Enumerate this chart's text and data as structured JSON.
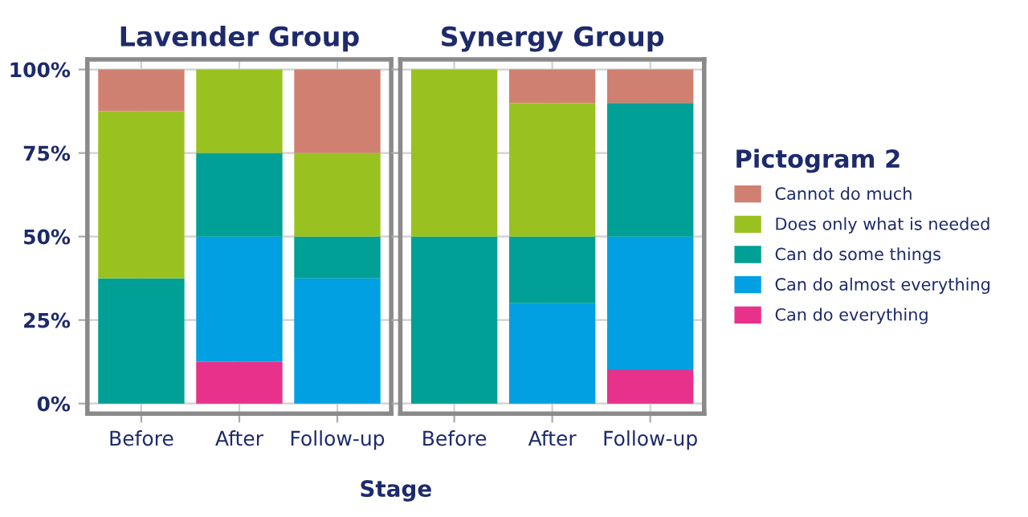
{
  "chart_data": [
    {
      "type": "bar",
      "title": "Lavender Group",
      "xlabel": "Stage",
      "categories": [
        "Before",
        "After",
        "Follow-up"
      ],
      "stacked": true,
      "ylim": [
        0,
        100
      ],
      "yticks": [
        {
          "value": 0,
          "label": "0%"
        },
        {
          "value": 25,
          "label": "25%"
        },
        {
          "value": 50,
          "label": "50%"
        },
        {
          "value": 75,
          "label": "75%"
        },
        {
          "value": 100,
          "label": "100%"
        }
      ],
      "grid": true,
      "series": [
        {
          "color": "#e8318a",
          "values": [
            null,
            12.5,
            null
          ]
        },
        {
          "color": "#00a0e3",
          "values": [
            null,
            37.5,
            37.5
          ]
        },
        {
          "color": "#00a096",
          "values": [
            37.5,
            25,
            12.5
          ]
        },
        {
          "color": "#99c221",
          "values": [
            50,
            25,
            25
          ]
        },
        {
          "color": "#d08070",
          "values": [
            12.5,
            null,
            25
          ]
        }
      ]
    },
    {
      "type": "bar",
      "title": "Synergy Group",
      "categories": [
        "Before",
        "After",
        "Follow-up"
      ],
      "stacked": true,
      "ylim": [
        0,
        100
      ],
      "yticks": [
        0,
        25,
        50,
        75,
        100
      ],
      "tick_labels": "x",
      "grid": true,
      "legend": "right",
      "legend_title": "Pictogram 2",
      "series": [
        {
          "name": "Can do everything",
          "color": "#e8318a",
          "values": [
            null,
            null,
            10
          ]
        },
        {
          "name": "Can do almost everything",
          "color": "#00a0e3",
          "values": [
            null,
            30,
            40
          ]
        },
        {
          "name": "Can do some things",
          "color": "#00a096",
          "values": [
            50,
            20,
            40
          ]
        },
        {
          "name": "Does only what is needed",
          "color": "#99c221",
          "values": [
            50,
            40,
            null
          ]
        },
        {
          "name": "Cannot do much",
          "color": "#d08070",
          "values": [
            null,
            10,
            10
          ]
        }
      ]
    }
  ]
}
